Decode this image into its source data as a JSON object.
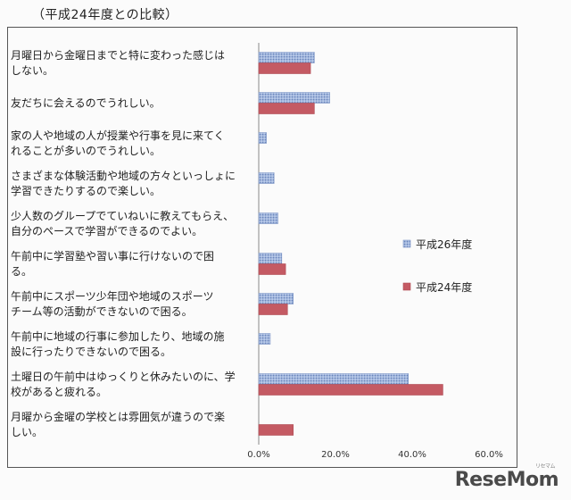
{
  "page": {
    "subtitle": "（平成24年度との比較）"
  },
  "logo": {
    "text": "ReseMom",
    "sub": "リセマム"
  },
  "chart_data": {
    "type": "bar",
    "orientation": "horizontal",
    "title": "（平成24年度との比較）",
    "categories": [
      [
        "月曜日から金曜日までと特に変わった感じは",
        "しない。"
      ],
      [
        "友だちに会えるのでうれしい。"
      ],
      [
        "家の人や地域の人が授業や行事を見に来てく",
        "れることが多いのでうれしい。"
      ],
      [
        "さまざまな体験活動や地域の方々といっしょに",
        "学習できたりするので楽しい。"
      ],
      [
        "少人数のグループでていねいに教えてもらえ、",
        "自分のペースで学習ができるのでよい。"
      ],
      [
        "午前中に学習塾や習い事に行けないので困",
        "る。"
      ],
      [
        "午前中にスポーツ少年団や地域のスポーツ",
        "チーム等の活動ができないので困る。"
      ],
      [
        "午前中に地域の行事に参加したり、地域の施",
        "設に行ったりできないので困る。"
      ],
      [
        "土曜日の午前中はゆっくりと休みたいのに、学",
        "校があると疲れる。"
      ],
      [
        "月曜から金曜の学校とは雰囲気が違うので楽",
        "しい。"
      ]
    ],
    "series": [
      {
        "name": "平成26年度",
        "color": "#9bb2dc",
        "pattern": true,
        "values": [
          14.5,
          18.5,
          2.0,
          4.0,
          5.0,
          6.0,
          9.0,
          3.0,
          39.0,
          null
        ]
      },
      {
        "name": "平成24年度",
        "color": "#c45a63",
        "pattern": false,
        "values": [
          13.5,
          14.5,
          null,
          null,
          null,
          7.0,
          7.5,
          null,
          48.0,
          9.0
        ]
      }
    ],
    "x_ticks": [
      "0.0%",
      "20.0%",
      "40.0%",
      "60.0%"
    ],
    "xlim": [
      0,
      60
    ],
    "legend_position": "right"
  }
}
